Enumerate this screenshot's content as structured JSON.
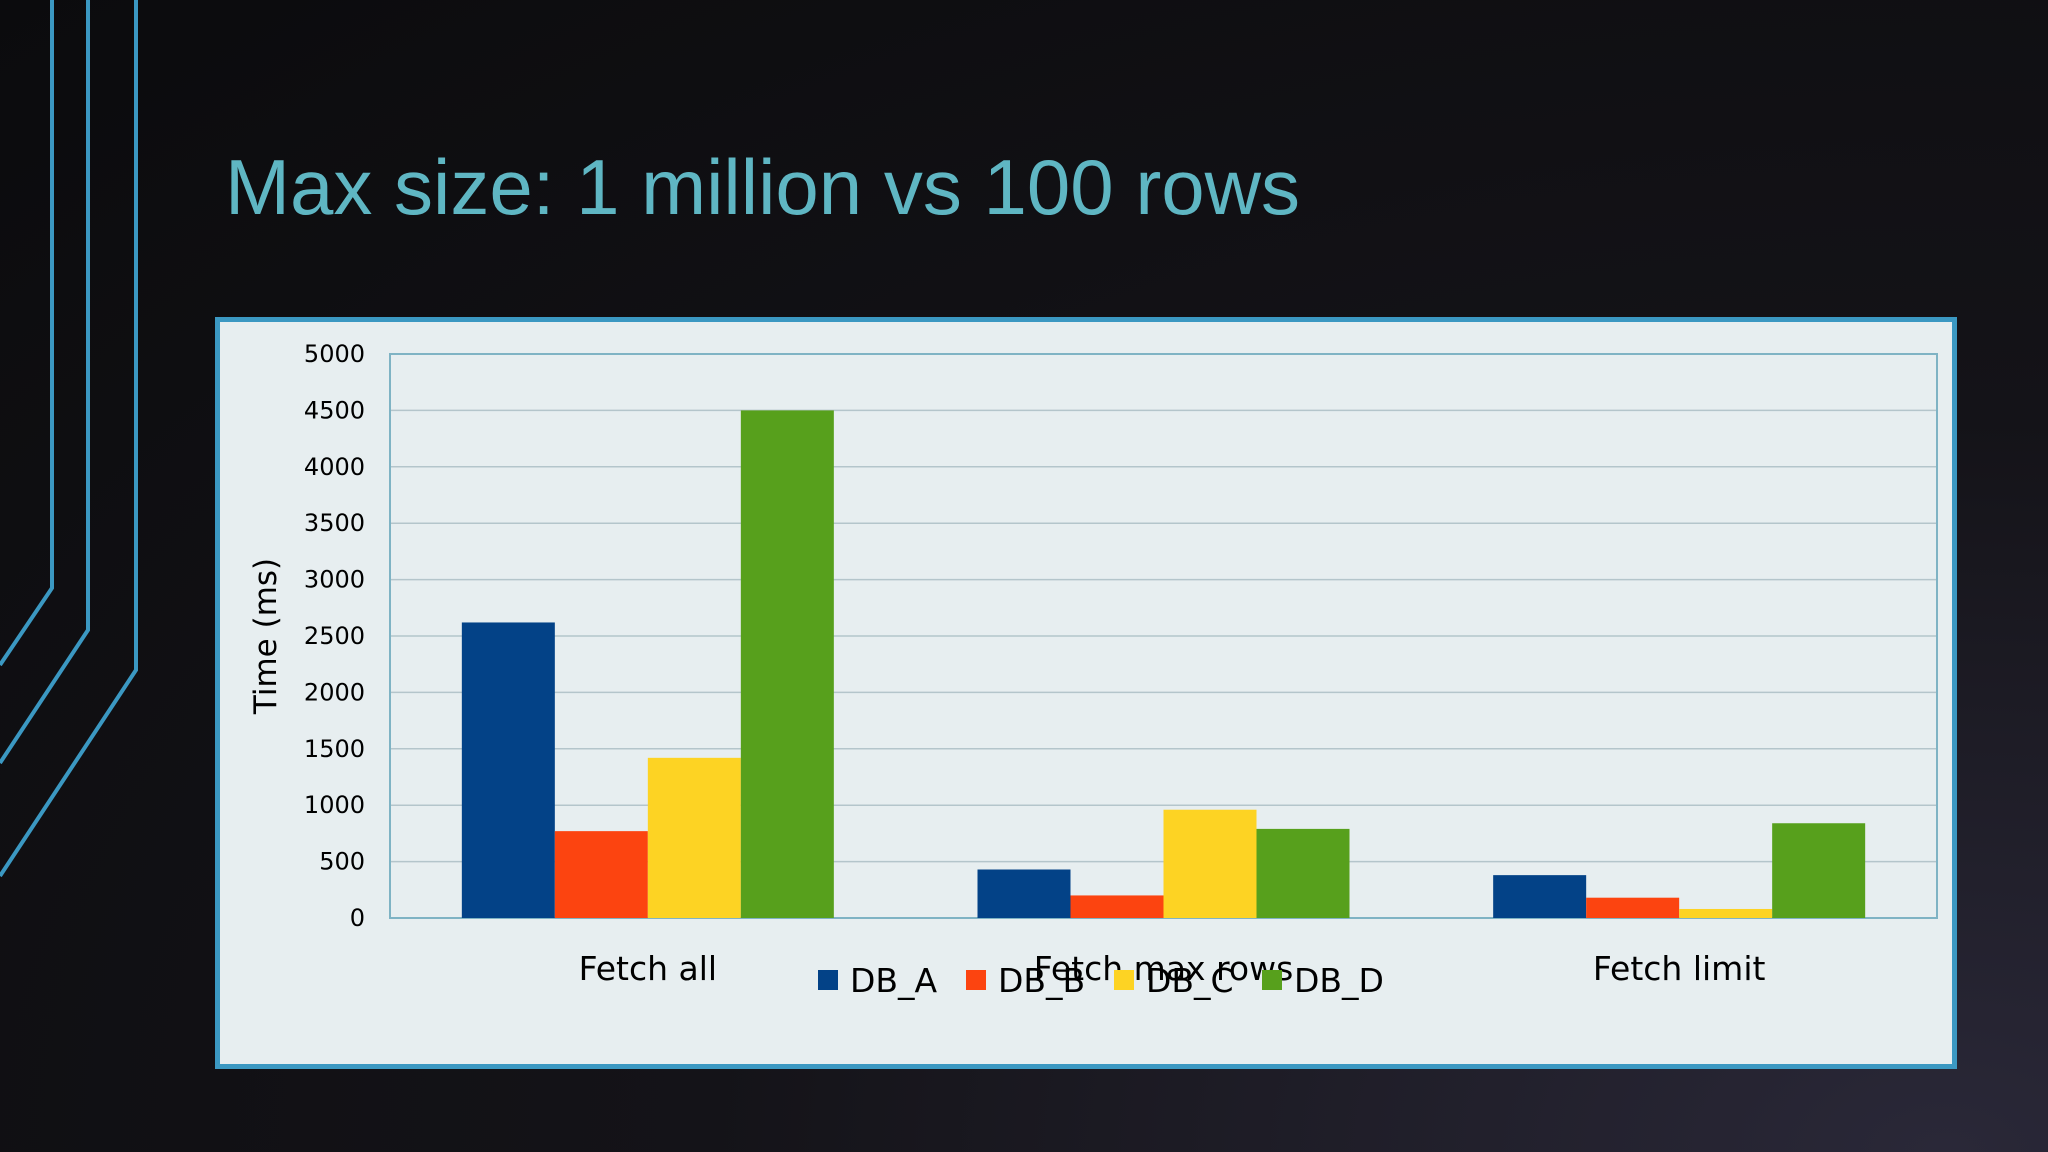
{
  "slide": {
    "title": "Max size: 1 million vs 100 rows"
  },
  "colors": {
    "accent_lines": "#3b98c2",
    "title": "#5fb6c3"
  },
  "chart_data": {
    "type": "bar",
    "title": "",
    "xlabel": "",
    "ylabel": "Time (ms)",
    "ylim": [
      0,
      5000
    ],
    "yticks": [
      0,
      500,
      1000,
      1500,
      2000,
      2500,
      3000,
      3500,
      4000,
      4500,
      5000
    ],
    "grid": true,
    "legend_position": "bottom",
    "categories": [
      "Fetch all",
      "Fetch max rows",
      "Fetch limit"
    ],
    "series": [
      {
        "name": "DB_A",
        "color": "#034287",
        "values": [
          2620,
          430,
          380
        ]
      },
      {
        "name": "DB_B",
        "color": "#fc4410",
        "values": [
          770,
          200,
          180
        ]
      },
      {
        "name": "DB_C",
        "color": "#fdd323",
        "values": [
          1420,
          960,
          80
        ]
      },
      {
        "name": "DB_D",
        "color": "#57a01c",
        "values": [
          4500,
          790,
          840
        ]
      }
    ]
  }
}
